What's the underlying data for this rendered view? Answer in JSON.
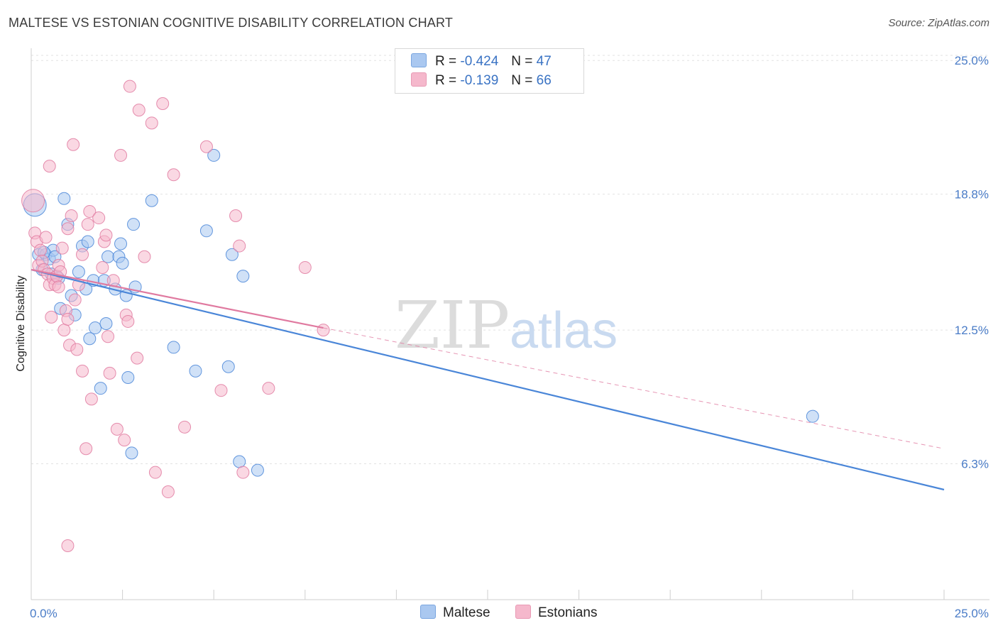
{
  "title": "MALTESE VS ESTONIAN COGNITIVE DISABILITY CORRELATION CHART",
  "source": "Source: ZipAtlas.com",
  "watermark": {
    "zip": "ZIP",
    "atlas": "atlas"
  },
  "legend_top": [
    {
      "r_label": "R =",
      "r_value": "-0.424",
      "n_label": "N =",
      "n_value": "47",
      "color": "#aac8f0"
    },
    {
      "r_label": "R =",
      "r_value": "-0.139",
      "n_label": "N =",
      "n_value": "66",
      "color": "#f5b8cc"
    }
  ],
  "legend_bottom": [
    {
      "label": "Maltese",
      "color": "#aac8f0"
    },
    {
      "label": "Estonians",
      "color": "#f5b8cc"
    }
  ],
  "chart_data": {
    "type": "scatter",
    "title": "MALTESE VS ESTONIAN COGNITIVE DISABILITY CORRELATION CHART",
    "xlabel": "",
    "ylabel": "Cognitive Disability",
    "xlim": [
      0,
      25
    ],
    "ylim": [
      0,
      25.5
    ],
    "x_tick_labels": [
      "0.0%",
      "25.0%"
    ],
    "y_ticks": [
      6.3,
      12.5,
      18.8,
      25.0
    ],
    "y_tick_labels": [
      "6.3%",
      "12.5%",
      "18.8%",
      "25.0%"
    ],
    "grid": true,
    "series": [
      {
        "name": "Maltese",
        "color": "#4a86d8",
        "fill": "#aac8f0",
        "trend": {
          "x0": 0,
          "y0": 15.3,
          "x1": 25,
          "y1": 5.1,
          "style": "solid"
        },
        "points": [
          [
            0.1,
            18.3
          ],
          [
            0.2,
            16.0
          ],
          [
            0.3,
            15.3
          ],
          [
            0.4,
            16.0
          ],
          [
            0.5,
            15.8
          ],
          [
            0.6,
            16.2
          ],
          [
            0.7,
            15.0
          ],
          [
            0.8,
            13.5
          ],
          [
            0.9,
            18.6
          ],
          [
            1.0,
            17.4
          ],
          [
            1.1,
            14.1
          ],
          [
            1.2,
            13.2
          ],
          [
            1.3,
            15.2
          ],
          [
            1.4,
            16.4
          ],
          [
            1.5,
            14.4
          ],
          [
            1.55,
            16.6
          ],
          [
            1.6,
            12.1
          ],
          [
            1.7,
            14.8
          ],
          [
            1.75,
            12.6
          ],
          [
            1.9,
            9.8
          ],
          [
            2.0,
            14.8
          ],
          [
            2.05,
            12.8
          ],
          [
            2.1,
            15.9
          ],
          [
            2.3,
            14.4
          ],
          [
            2.4,
            15.9
          ],
          [
            2.45,
            16.5
          ],
          [
            2.5,
            15.6
          ],
          [
            2.6,
            14.1
          ],
          [
            2.65,
            10.3
          ],
          [
            2.75,
            6.8
          ],
          [
            2.8,
            17.4
          ],
          [
            2.85,
            14.5
          ],
          [
            3.3,
            18.5
          ],
          [
            3.9,
            11.7
          ],
          [
            4.5,
            10.6
          ],
          [
            4.8,
            17.1
          ],
          [
            5.0,
            20.6
          ],
          [
            5.4,
            10.8
          ],
          [
            5.5,
            16.0
          ],
          [
            5.7,
            6.4
          ],
          [
            5.8,
            15.0
          ],
          [
            6.2,
            6.0
          ],
          [
            21.4,
            8.5
          ],
          [
            0.35,
            16.1
          ],
          [
            0.55,
            15.1
          ],
          [
            0.65,
            15.9
          ],
          [
            0.75,
            14.9
          ]
        ]
      },
      {
        "name": "Estonians",
        "color": "#e07aa0",
        "fill": "#f5b8cc",
        "trend": {
          "x0": 0,
          "y0": 15.3,
          "x1": 8,
          "y1": 12.6,
          "style": "solid",
          "dash_x1": 25,
          "dash_y1": 7.0
        },
        "points": [
          [
            0.05,
            18.5
          ],
          [
            0.1,
            17.0
          ],
          [
            0.15,
            16.6
          ],
          [
            0.2,
            15.5
          ],
          [
            0.25,
            16.2
          ],
          [
            0.3,
            15.7
          ],
          [
            0.35,
            15.3
          ],
          [
            0.4,
            16.8
          ],
          [
            0.45,
            15.1
          ],
          [
            0.5,
            14.6
          ],
          [
            0.5,
            20.1
          ],
          [
            0.55,
            13.1
          ],
          [
            0.6,
            14.9
          ],
          [
            0.65,
            14.6
          ],
          [
            0.7,
            15.0
          ],
          [
            0.75,
            15.5
          ],
          [
            0.75,
            14.5
          ],
          [
            0.8,
            15.2
          ],
          [
            0.85,
            16.3
          ],
          [
            0.9,
            12.5
          ],
          [
            0.95,
            13.4
          ],
          [
            1.0,
            17.2
          ],
          [
            1.0,
            13.0
          ],
          [
            1.05,
            11.8
          ],
          [
            1.1,
            17.8
          ],
          [
            1.15,
            21.1
          ],
          [
            1.2,
            13.9
          ],
          [
            1.25,
            11.6
          ],
          [
            1.3,
            14.6
          ],
          [
            1.4,
            10.6
          ],
          [
            1.4,
            16.0
          ],
          [
            1.5,
            7.0
          ],
          [
            1.55,
            17.4
          ],
          [
            1.6,
            18.0
          ],
          [
            1.65,
            9.3
          ],
          [
            1.85,
            17.7
          ],
          [
            1.95,
            15.4
          ],
          [
            2.0,
            16.6
          ],
          [
            2.05,
            16.9
          ],
          [
            2.1,
            12.2
          ],
          [
            2.15,
            10.5
          ],
          [
            2.25,
            14.8
          ],
          [
            2.35,
            7.9
          ],
          [
            2.45,
            20.6
          ],
          [
            2.55,
            7.4
          ],
          [
            2.6,
            13.2
          ],
          [
            2.65,
            12.9
          ],
          [
            2.7,
            23.8
          ],
          [
            2.9,
            11.2
          ],
          [
            2.95,
            22.7
          ],
          [
            3.1,
            15.9
          ],
          [
            3.3,
            22.1
          ],
          [
            3.4,
            5.9
          ],
          [
            3.6,
            23.0
          ],
          [
            3.75,
            5.0
          ],
          [
            3.9,
            19.7
          ],
          [
            4.2,
            8.0
          ],
          [
            4.8,
            21.0
          ],
          [
            5.2,
            9.7
          ],
          [
            5.6,
            17.8
          ],
          [
            5.7,
            16.4
          ],
          [
            5.8,
            5.9
          ],
          [
            6.5,
            9.8
          ],
          [
            7.5,
            15.4
          ],
          [
            8.0,
            12.5
          ],
          [
            1.0,
            2.5
          ]
        ]
      }
    ]
  }
}
